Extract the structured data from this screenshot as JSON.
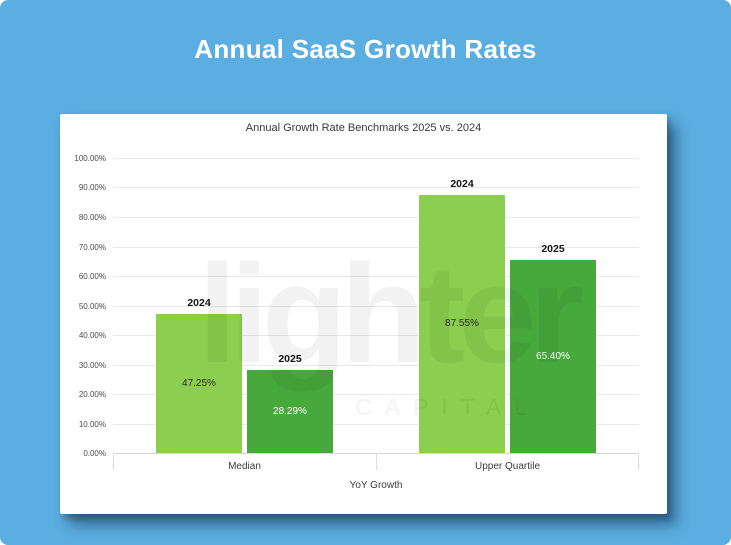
{
  "page_title": "Annual SaaS Growth Rates",
  "watermark": {
    "line1": "lighter",
    "line2": "CAPITAL"
  },
  "colors": {
    "background": "#5BAEE1",
    "card": "#FFFFFF",
    "bar_2024": "#8CCE4F",
    "bar_2025": "#47A83C",
    "title_text": "#FFFFFF",
    "gridline": "#E9E9E9",
    "axis_line": "#D6D6D6",
    "tick_label": "#4A4A4A"
  },
  "chart_data": {
    "type": "bar",
    "title": "Annual Growth Rate Benchmarks 2025 vs. 2024",
    "xlabel": "YoY Growth",
    "categories": [
      "Median",
      "Upper Quartile"
    ],
    "series": [
      {
        "name": "2024",
        "color": "#8CCE4F",
        "label_color": "#2B2B2B",
        "values": [
          47.25,
          87.55
        ],
        "value_labels": [
          "47.25%",
          "87.55%"
        ]
      },
      {
        "name": "2025",
        "color": "#47A83C",
        "label_color": "#FFFFFF",
        "values": [
          28.29,
          65.4
        ],
        "value_labels": [
          "28.29%",
          "65.40%"
        ]
      }
    ],
    "ylim": [
      0,
      100
    ],
    "yticks": [
      {
        "value": 0,
        "label": "0.00%"
      },
      {
        "value": 10,
        "label": "10.00%"
      },
      {
        "value": 20,
        "label": "20.00%"
      },
      {
        "value": 30,
        "label": "30.00%"
      },
      {
        "value": 40,
        "label": "40.00%"
      },
      {
        "value": 50,
        "label": "50.00%"
      },
      {
        "value": 60,
        "label": "60.00%"
      },
      {
        "value": 70,
        "label": "70.00%"
      },
      {
        "value": 80,
        "label": "80.00%"
      },
      {
        "value": 90,
        "label": "90.00%"
      },
      {
        "value": 100,
        "label": "100.00%"
      }
    ],
    "grid": true,
    "legend": "none"
  }
}
